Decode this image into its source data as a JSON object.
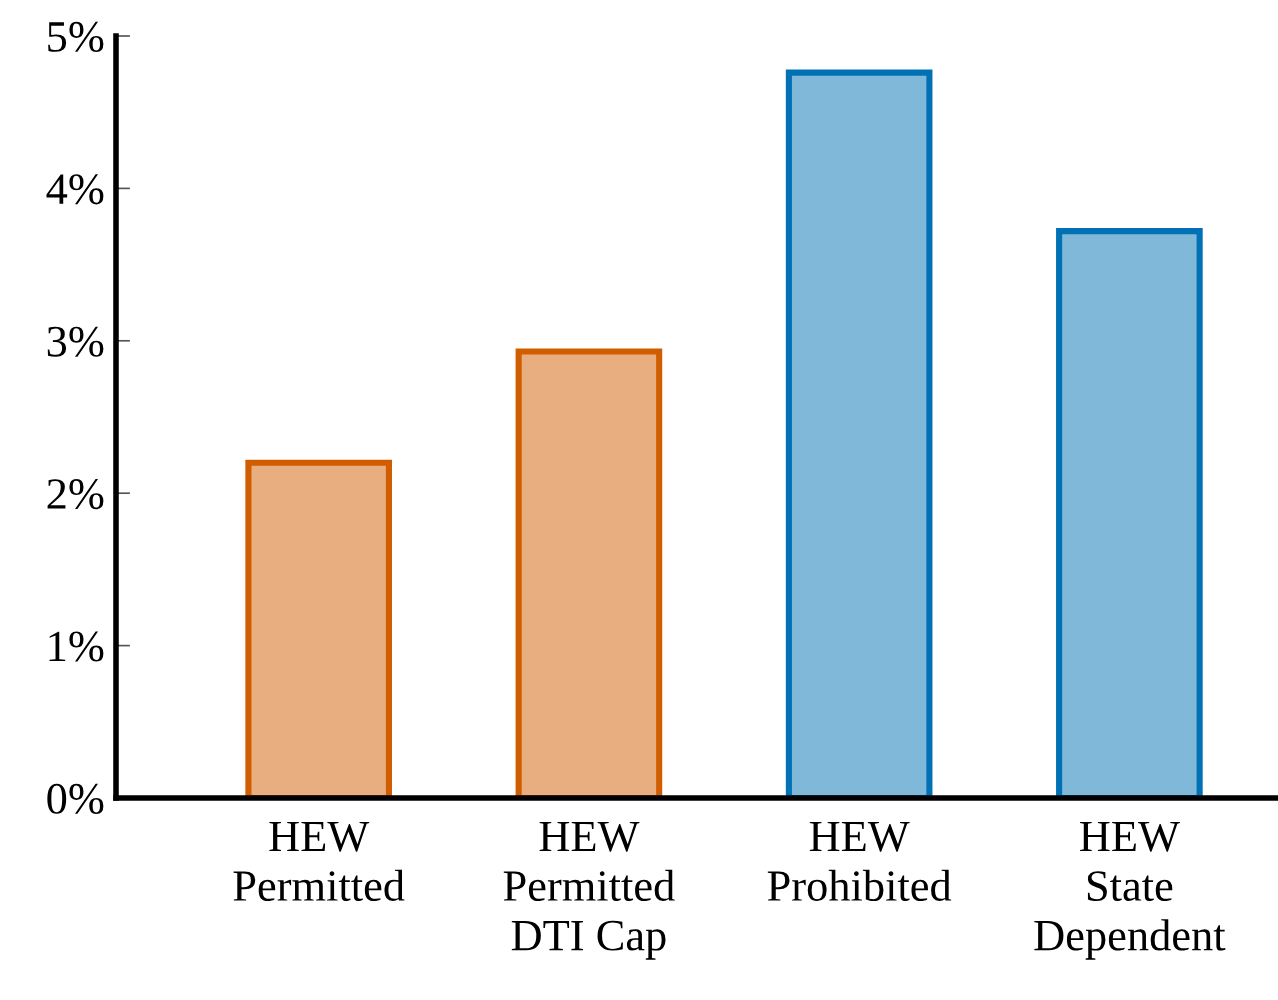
{
  "chart_data": {
    "type": "bar",
    "categories": [
      "HEW\nPermitted",
      "HEW\nPermitted\nDTI Cap",
      "HEW\nProhibited",
      "HEW\nState\nDependent"
    ],
    "values": [
      2.2,
      2.93,
      4.76,
      3.72
    ],
    "colors": [
      "#e8ae80",
      "#e8ae80",
      "#80b8da",
      "#80b8da"
    ],
    "ylim": [
      0,
      5
    ],
    "yticks": [
      {
        "value": 0,
        "label": "0%"
      },
      {
        "value": 1,
        "label": "1%"
      },
      {
        "value": 2,
        "label": "2%"
      },
      {
        "value": 3,
        "label": "3%"
      },
      {
        "value": 4,
        "label": "4%"
      },
      {
        "value": 5,
        "label": "5%"
      }
    ],
    "grid": false
  }
}
